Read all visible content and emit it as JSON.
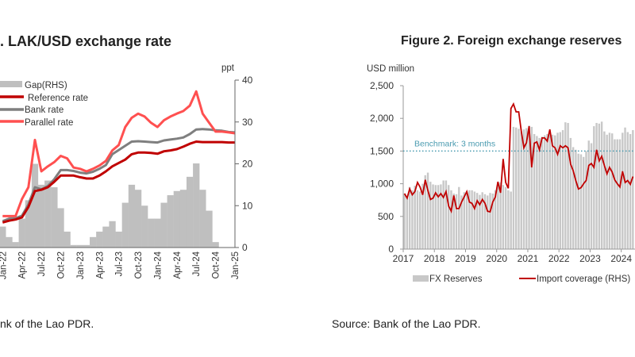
{
  "colors": {
    "reference": "#c00000",
    "bank": "#7f7f7f",
    "parallel": "#ff5050",
    "gap": "#bfbfbf",
    "fx_bars": "#c8c8c8",
    "import_line": "#c00000",
    "benchmark": "#4a9bb0"
  },
  "chart_data": [
    {
      "type": "line",
      "title": ". LAK/USD exchange rate",
      "source": "nk of the Lao PDR.",
      "y2label": "ppt",
      "y2lim": [
        0,
        40
      ],
      "y2ticks": [
        "0",
        "10",
        "20",
        "30",
        "40"
      ],
      "xticks": [
        "Jan-22",
        "Apr-22",
        "Jul-22",
        "Oct-22",
        "Jan-23",
        "Apr-23",
        "Jul-23",
        "Oct-23",
        "Jan-24",
        "Apr-24",
        "Jul-24",
        "Oct-24",
        "Jan-25"
      ],
      "x": [
        "Jan-22",
        "Feb-22",
        "Mar-22",
        "Apr-22",
        "May-22",
        "Jun-22",
        "Jul-22",
        "Aug-22",
        "Sep-22",
        "Oct-22",
        "Nov-22",
        "Dec-22",
        "Jan-23",
        "Feb-23",
        "Mar-23",
        "Apr-23",
        "May-23",
        "Jun-23",
        "Jul-23",
        "Aug-23",
        "Sep-23",
        "Oct-23",
        "Nov-23",
        "Dec-23",
        "Jan-24",
        "Feb-24",
        "Mar-24",
        "Apr-24",
        "May-24",
        "Jun-24",
        "Jul-24",
        "Aug-24",
        "Sep-24",
        "Oct-24",
        "Nov-24",
        "Dec-24",
        "Jan-25"
      ],
      "legend_placement": "top-left",
      "series": [
        {
          "name": "Gap(RHS)",
          "kind": "area",
          "values": [
            5.0,
            2.5,
            1.3,
            6.9,
            11.3,
            20.0,
            15.0,
            16.0,
            14.4,
            9.4,
            3.8,
            0.6,
            0.6,
            0.6,
            2.5,
            3.8,
            5.0,
            6.3,
            3.8,
            10.7,
            15.0,
            13.8,
            10.0,
            6.9,
            6.9,
            10.7,
            12.5,
            13.5,
            13.8,
            16.9,
            20.1,
            13.8,
            8.8,
            1.3,
            0,
            0,
            0
          ]
        },
        {
          "name": "Reference rate",
          "kind": "line",
          "values": [
            6.0,
            6.4,
            6.7,
            7.2,
            9.7,
            13.5,
            13.8,
            14.4,
            15.7,
            17.2,
            17.2,
            17.2,
            16.8,
            16.5,
            16.5,
            17.2,
            18.2,
            19.4,
            20.2,
            21.0,
            22.3,
            22.7,
            22.7,
            22.6,
            22.4,
            23.0,
            23.2,
            23.5,
            24.1,
            24.8,
            25.3,
            25.2,
            25.2,
            25.2,
            25.2,
            25.1,
            25.1
          ]
        },
        {
          "name": "Bank rate",
          "kind": "line",
          "values": [
            6.3,
            6.9,
            7.0,
            7.6,
            10.3,
            14.4,
            13.9,
            14.7,
            16.3,
            18.5,
            18.5,
            18.3,
            17.9,
            17.7,
            18.1,
            18.8,
            19.7,
            22.3,
            23.3,
            24.3,
            25.3,
            25.4,
            25.3,
            25.2,
            25.1,
            25.6,
            25.8,
            26.0,
            26.3,
            27.1,
            28.2,
            28.3,
            28.2,
            28.0,
            27.9,
            27.6,
            27.5
          ]
        },
        {
          "name": "Parallel rate",
          "kind": "line",
          "values": [
            7.5,
            7.5,
            7.5,
            11.6,
            14.4,
            25.7,
            18.2,
            19.4,
            20.4,
            21.9,
            21.3,
            19.1,
            18.8,
            18.2,
            18.8,
            19.6,
            20.7,
            23.2,
            24.5,
            28.8,
            31.0,
            32.0,
            31.3,
            29.8,
            28.8,
            30.4,
            31.3,
            32.0,
            32.6,
            33.9,
            37.3,
            32.0,
            29.8,
            27.7,
            27.7,
            27.5,
            27.3
          ]
        }
      ]
    },
    {
      "type": "bar",
      "title": "Figure 2. Foreign exchange reserves",
      "source": "Source: Bank of the Lao PDR.",
      "ylabel": "USD million",
      "ylim": [
        0,
        2500
      ],
      "yticks": [
        "0",
        "500",
        "1,000",
        "1,500",
        "2,000",
        "2,500"
      ],
      "xticks": [
        "2017",
        "2018",
        "2019",
        "2020",
        "2021",
        "2022",
        "2023",
        "2024"
      ],
      "x_start": "Jan-2017",
      "x_frequency": "monthly",
      "annotation": {
        "label": "Benchmark: 3 months",
        "value": 1500
      },
      "legend_placement": "bottom",
      "series": [
        {
          "name": "FX Reserves",
          "kind": "bar",
          "values": [
            850,
            800,
            950,
            900,
            970,
            900,
            880,
            1000,
            1130,
            1170,
            1030,
            990,
            980,
            980,
            990,
            1050,
            1050,
            980,
            900,
            850,
            840,
            950,
            820,
            870,
            880,
            900,
            900,
            880,
            860,
            830,
            870,
            840,
            820,
            860,
            850,
            900,
            1000,
            1020,
            980,
            950,
            900,
            880,
            1870,
            1860,
            1840,
            1800,
            1830,
            1850,
            1890,
            1870,
            1760,
            1730,
            1700,
            1720,
            1740,
            1760,
            1780,
            1750,
            1740,
            1780,
            1790,
            1820,
            1940,
            1930,
            1700,
            1560,
            1520,
            1460,
            1450,
            1410,
            1500,
            1660,
            1620,
            1880,
            1930,
            1920,
            1950,
            1800,
            1750,
            1780,
            1770,
            1680,
            1680,
            1680,
            1780,
            1860,
            1790,
            1760,
            1820
          ]
        },
        {
          "name": "Import coverage (RHS)",
          "kind": "line",
          "values": [
            850,
            780,
            920,
            830,
            880,
            1020,
            950,
            830,
            1060,
            900,
            760,
            780,
            860,
            800,
            850,
            790,
            880,
            660,
            580,
            820,
            620,
            620,
            720,
            800,
            880,
            720,
            700,
            620,
            740,
            680,
            760,
            700,
            580,
            570,
            720,
            800,
            1030,
            860,
            1380,
            1020,
            930,
            2150,
            2220,
            2100,
            2100,
            1800,
            1550,
            1630,
            1880,
            1250,
            1620,
            1640,
            1520,
            1700,
            1700,
            1650,
            1830,
            1580,
            1550,
            1450,
            1580,
            1550,
            1580,
            1550,
            1300,
            1200,
            1050,
            920,
            940,
            1000,
            1050,
            1280,
            1310,
            1250,
            1520,
            1350,
            1420,
            1280,
            1150,
            1250,
            1180,
            1060,
            1000,
            950,
            1190,
            1020,
            1050,
            990,
            1110
          ]
        }
      ]
    }
  ]
}
